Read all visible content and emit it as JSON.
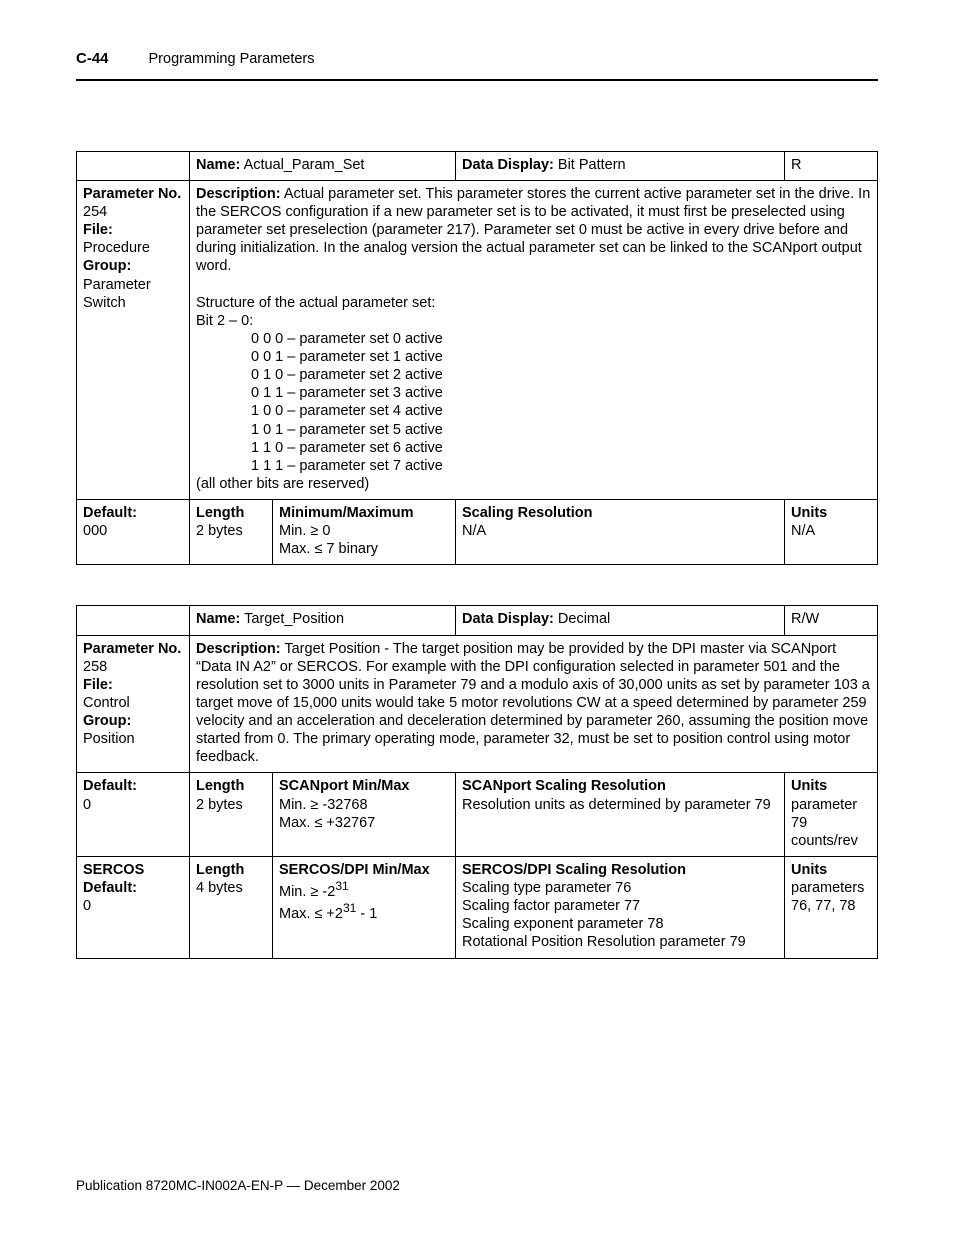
{
  "header": {
    "page_no": "C-44",
    "section": "Programming Parameters"
  },
  "table1": {
    "name_label": "Name:",
    "name_value": "Actual_Param_Set",
    "data_display_label": "Data Display:",
    "data_display_value": "Bit Pattern",
    "rw": "R",
    "left_block": "Parameter No.\n254\nFile:\nProcedure\nGroup:\nParameter Switch",
    "desc_label": "Description:",
    "desc_text": " Actual parameter set. This parameter stores the current active parameter set in the drive. In the SERCOS configuration if a new parameter set is to be activated, it must first be preselected using parameter set preselection (parameter 217). Parameter set 0 must be active in every drive before and during initialization. In the analog version the actual parameter set can be linked to the SCANport output word.",
    "structure_intro": "Structure of the actual parameter set:\nBit 2 – 0:",
    "structure_list": "0 0 0 – parameter set 0 active\n0 0 1 – parameter set 1 active\n0 1 0 – parameter set 2 active\n0 1 1 – parameter set 3 active\n1 0 0 – parameter set 4 active\n1 0 1 – parameter set 5 active\n1 1 0 – parameter set 6 active\n1 1 1 – parameter set 7 active",
    "structure_tail": "(all other bits are reserved)",
    "default_label": "Default:",
    "default_value": "000",
    "length_label": "Length",
    "length_value": "2 bytes",
    "minmax_label": "Minimum/Maximum",
    "minmax_value": "Min. ≥ 0\nMax. ≤ 7 binary",
    "scaling_label": "Scaling Resolution",
    "scaling_value": "N/A",
    "units_label": "Units",
    "units_value": "N/A"
  },
  "table2": {
    "name_label": "Name:",
    "name_value": "Target_Position",
    "data_display_label": "Data Display:",
    "data_display_value": "Decimal",
    "rw": "R/W",
    "left_block": "Parameter No.\n258\nFile:\nControl\nGroup:\nPosition",
    "desc_label": "Description:",
    "desc_text": " Target Position - The target position may be provided by the DPI master via SCANport “Data IN A2” or SERCOS. For example with the DPI configuration selected in parameter 501 and the resolution set to 3000 units in Parameter 79 and a modulo axis of 30,000 units as set by parameter 103 a target move of 15,000 units would take 5 motor revolutions CW at a speed determined by parameter 259 velocity and an acceleration and deceleration determined by parameter 260, assuming the position move started from 0. The primary operating mode, parameter 32, must be set to position control using motor feedback.",
    "row_scan": {
      "default_label": "Default:",
      "default_value": "0",
      "length_label": "Length",
      "length_value": "2 bytes",
      "minmax_label": "SCANport  Min/Max",
      "minmax_value": "Min. ≥ -32768\nMax. ≤ +32767",
      "scaling_label": "SCANport Scaling Resolution",
      "scaling_value": "Resolution units as determined by parameter 79",
      "units_label": "Units",
      "units_value": "parameter 79 counts/rev"
    },
    "row_sercos": {
      "default_label": "SERCOS Default:",
      "default_value": "0",
      "length_label": "Length",
      "length_value": "4 bytes",
      "minmax_label": "SERCOS/DPI Min/Max",
      "minmax_line1": "Min. ≥ -2",
      "minmax_exp1": "31",
      "minmax_line2": "Max. ≤ +2",
      "minmax_exp2": "31",
      "minmax_tail2": " - 1",
      "scaling_label": "SERCOS/DPI Scaling Resolution",
      "scaling_value": "Scaling type parameter 76\nScaling factor parameter 77\nScaling exponent parameter 78\nRotational Position Resolution parameter 79",
      "units_label": "Units",
      "units_value": "parameters 76, 77, 78"
    }
  },
  "footer": "Publication 8720MC-IN002A-EN-P — December 2002"
}
